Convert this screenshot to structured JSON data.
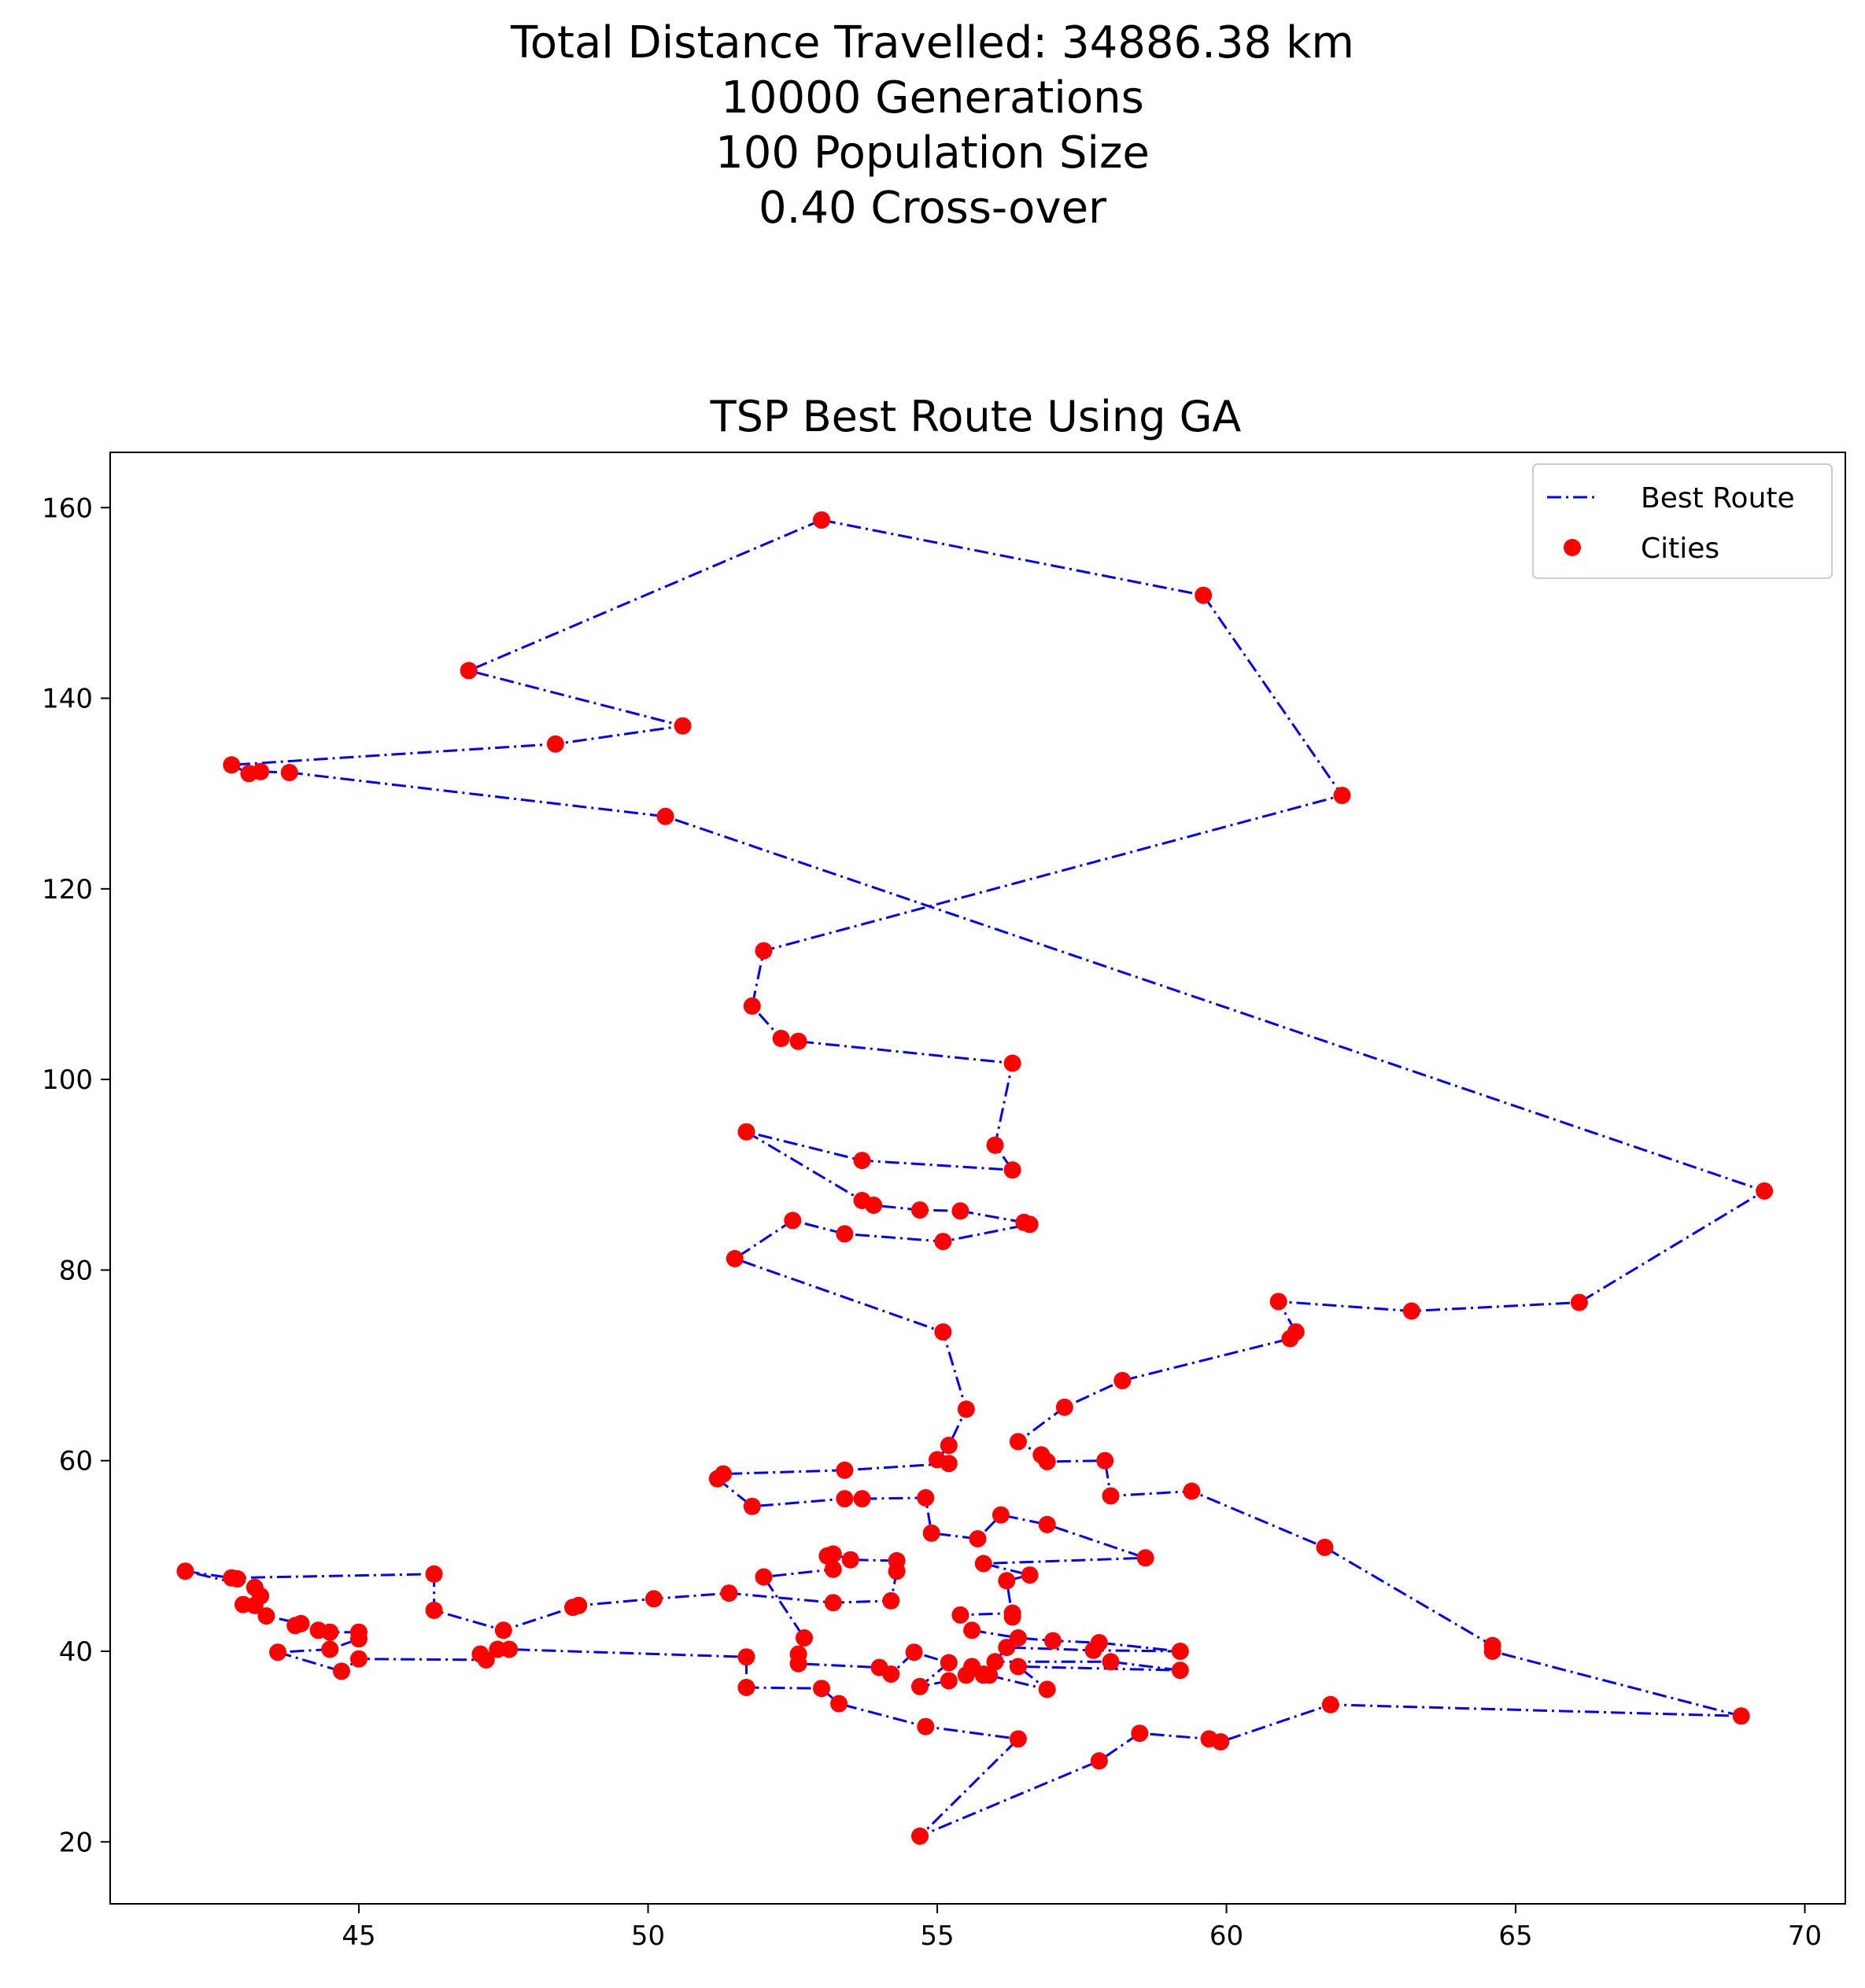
{
  "figure": {
    "suptitle_lines": [
      "Total Distance Travelled: 34886.38 km",
      "10000 Generations",
      "100 Population Size",
      "0.40 Cross-over"
    ]
  },
  "chart_data": {
    "type": "line",
    "title": "TSP Best Route Using GA",
    "xlabel": "",
    "ylabel": "",
    "xlim": [
      40.7,
      70.7
    ],
    "ylim": [
      13.5,
      165.8
    ],
    "xticks": [
      45,
      50,
      55,
      60,
      65,
      70
    ],
    "yticks": [
      20,
      40,
      60,
      80,
      100,
      120,
      140,
      160
    ],
    "grid": false,
    "legend_position": "top-right",
    "colors": {
      "route": "#0000ff",
      "cities": "#ff0000"
    },
    "series": [
      {
        "name": "Best Route",
        "style": "dash-dot",
        "points": [
          [
            53.0,
            158.7
          ],
          [
            59.6,
            150.8
          ],
          [
            62.0,
            129.8
          ],
          [
            52.0,
            113.5
          ],
          [
            51.8,
            107.7
          ],
          [
            52.3,
            104.3
          ],
          [
            52.6,
            104.0
          ],
          [
            56.3,
            101.7
          ],
          [
            56.0,
            93.1
          ],
          [
            56.3,
            90.5
          ],
          [
            53.7,
            91.5
          ],
          [
            51.7,
            94.5
          ],
          [
            53.7,
            87.3
          ],
          [
            53.9,
            86.8
          ],
          [
            54.7,
            86.3
          ],
          [
            55.4,
            86.2
          ],
          [
            56.5,
            85.0
          ],
          [
            56.6,
            84.8
          ],
          [
            55.1,
            83.0
          ],
          [
            53.4,
            83.8
          ],
          [
            52.5,
            85.2
          ],
          [
            51.5,
            81.2
          ],
          [
            55.1,
            73.5
          ],
          [
            55.5,
            65.4
          ],
          [
            55.2,
            61.6
          ],
          [
            55.0,
            60.1
          ],
          [
            55.2,
            59.7
          ],
          [
            53.4,
            59.0
          ],
          [
            51.3,
            58.6
          ],
          [
            51.2,
            58.1
          ],
          [
            51.8,
            55.2
          ],
          [
            53.4,
            56.0
          ],
          [
            53.7,
            56.0
          ],
          [
            54.8,
            56.1
          ],
          [
            54.9,
            52.4
          ],
          [
            55.7,
            51.8
          ],
          [
            56.1,
            54.3
          ],
          [
            56.9,
            53.3
          ],
          [
            58.6,
            49.8
          ],
          [
            55.8,
            49.2
          ],
          [
            56.6,
            48.0
          ],
          [
            56.2,
            47.4
          ],
          [
            56.3,
            43.6
          ],
          [
            56.3,
            44.0
          ],
          [
            55.4,
            43.8
          ],
          [
            55.6,
            42.2
          ],
          [
            56.4,
            41.4
          ],
          [
            57.0,
            41.1
          ],
          [
            57.8,
            40.9
          ],
          [
            59.2,
            40.0
          ],
          [
            57.7,
            40.1
          ],
          [
            56.2,
            40.4
          ],
          [
            56.0,
            38.9
          ],
          [
            58.0,
            38.9
          ],
          [
            59.2,
            38.0
          ],
          [
            56.4,
            38.4
          ],
          [
            56.9,
            36.0
          ],
          [
            55.8,
            37.6
          ],
          [
            55.6,
            38.4
          ],
          [
            55.9,
            37.5
          ],
          [
            55.5,
            37.5
          ],
          [
            55.8,
            37.5
          ],
          [
            55.2,
            36.9
          ],
          [
            54.7,
            36.3
          ],
          [
            55.2,
            38.8
          ],
          [
            54.6,
            39.9
          ],
          [
            54.2,
            37.6
          ],
          [
            54.0,
            38.3
          ],
          [
            52.6,
            38.7
          ],
          [
            52.6,
            39.7
          ],
          [
            52.7,
            41.4
          ],
          [
            52.0,
            47.8
          ],
          [
            53.2,
            48.6
          ],
          [
            53.1,
            50.0
          ],
          [
            53.2,
            50.2
          ],
          [
            53.5,
            49.6
          ],
          [
            54.3,
            49.5
          ],
          [
            54.3,
            48.4
          ],
          [
            54.2,
            45.3
          ],
          [
            53.2,
            45.1
          ],
          [
            51.4,
            46.1
          ],
          [
            50.1,
            45.5
          ],
          [
            48.8,
            44.8
          ],
          [
            48.7,
            44.6
          ],
          [
            47.5,
            42.2
          ],
          [
            46.3,
            44.3
          ],
          [
            46.3,
            48.1
          ],
          [
            42.8,
            47.7
          ],
          [
            42.9,
            47.6
          ],
          [
            42.0,
            48.4
          ],
          [
            43.2,
            46.7
          ],
          [
            43.3,
            45.8
          ],
          [
            43.0,
            44.9
          ],
          [
            43.2,
            44.8
          ],
          [
            43.4,
            43.7
          ],
          [
            44.0,
            42.9
          ],
          [
            43.9,
            42.7
          ],
          [
            44.3,
            42.2
          ],
          [
            44.5,
            42.0
          ],
          [
            45.0,
            42.0
          ],
          [
            45.0,
            41.3
          ],
          [
            44.5,
            40.2
          ],
          [
            43.6,
            39.9
          ],
          [
            44.7,
            37.9
          ],
          [
            45.0,
            39.2
          ],
          [
            47.2,
            39.1
          ],
          [
            47.1,
            39.7
          ],
          [
            47.4,
            40.2
          ],
          [
            47.6,
            40.2
          ],
          [
            51.7,
            39.4
          ],
          [
            51.7,
            36.2
          ],
          [
            53.0,
            36.1
          ],
          [
            53.3,
            34.5
          ],
          [
            54.8,
            32.1
          ],
          [
            56.4,
            30.8
          ],
          [
            54.7,
            20.6
          ],
          [
            57.8,
            28.5
          ],
          [
            58.5,
            31.4
          ],
          [
            59.7,
            30.8
          ],
          [
            59.9,
            30.5
          ],
          [
            61.8,
            34.4
          ],
          [
            68.9,
            33.2
          ],
          [
            64.6,
            40.0
          ],
          [
            64.6,
            40.6
          ],
          [
            61.7,
            50.9
          ],
          [
            59.4,
            56.8
          ],
          [
            58.0,
            56.3
          ],
          [
            57.9,
            60.0
          ],
          [
            56.9,
            59.9
          ],
          [
            56.8,
            60.6
          ],
          [
            56.4,
            62.0
          ],
          [
            57.2,
            65.6
          ],
          [
            58.2,
            68.4
          ],
          [
            61.1,
            72.8
          ],
          [
            61.2,
            73.5
          ],
          [
            60.9,
            76.7
          ],
          [
            63.2,
            75.7
          ],
          [
            66.1,
            76.6
          ],
          [
            69.3,
            88.3
          ],
          [
            50.3,
            127.6
          ],
          [
            43.8,
            132.2
          ],
          [
            43.3,
            132.3
          ],
          [
            43.1,
            132.1
          ],
          [
            42.8,
            133.0
          ],
          [
            48.4,
            135.2
          ],
          [
            50.6,
            137.1
          ],
          [
            46.9,
            142.9
          ],
          [
            53.0,
            158.7
          ]
        ]
      },
      {
        "name": "Cities",
        "style": "scatter",
        "same_points_as": "Best Route"
      }
    ]
  }
}
